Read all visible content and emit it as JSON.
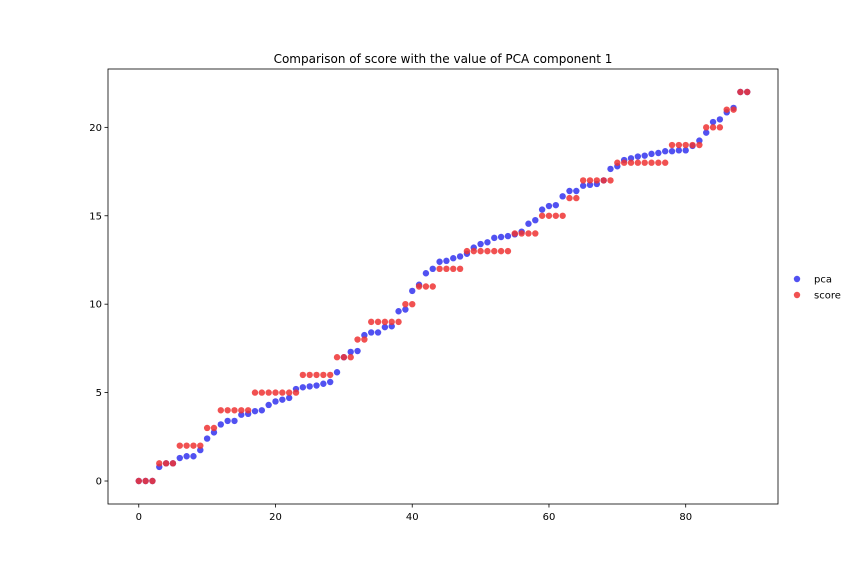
{
  "chart_data": {
    "type": "scatter",
    "title": "Comparison of score with the value of PCA component 1",
    "xlabel": "",
    "ylabel": "",
    "xlim": [
      -4.5,
      93.5
    ],
    "ylim": [
      -1.3,
      23.3
    ],
    "xticks": [
      0,
      20,
      40,
      60,
      80
    ],
    "yticks": [
      0,
      5,
      10,
      15,
      20
    ],
    "grid": false,
    "legend_position": "right",
    "series": [
      {
        "name": "pca",
        "color": "#3333ee",
        "x": [
          0,
          1,
          2,
          3,
          4,
          5,
          6,
          7,
          8,
          9,
          10,
          11,
          12,
          13,
          14,
          15,
          16,
          17,
          18,
          19,
          20,
          21,
          22,
          23,
          24,
          25,
          26,
          27,
          28,
          29,
          30,
          31,
          32,
          33,
          34,
          35,
          36,
          37,
          38,
          39,
          40,
          41,
          42,
          43,
          44,
          45,
          46,
          47,
          48,
          49,
          50,
          51,
          52,
          53,
          54,
          55,
          56,
          57,
          58,
          59,
          60,
          61,
          62,
          63,
          64,
          65,
          66,
          67,
          68,
          69,
          70,
          71,
          72,
          73,
          74,
          75,
          76,
          77,
          78,
          79,
          80,
          81,
          82,
          83,
          84,
          85,
          86,
          87,
          88,
          89
        ],
        "y": [
          0,
          0,
          0,
          0.8,
          1.0,
          1.0,
          1.3,
          1.4,
          1.4,
          1.75,
          2.4,
          2.75,
          3.2,
          3.4,
          3.4,
          3.75,
          3.8,
          3.95,
          4.0,
          4.3,
          4.5,
          4.6,
          4.7,
          5.2,
          5.3,
          5.35,
          5.4,
          5.5,
          5.6,
          6.15,
          7.0,
          7.3,
          7.35,
          8.25,
          8.4,
          8.4,
          8.7,
          8.75,
          9.6,
          9.7,
          10.75,
          11.1,
          11.75,
          12.0,
          12.4,
          12.45,
          12.6,
          12.7,
          12.85,
          13.2,
          13.4,
          13.5,
          13.75,
          13.8,
          13.85,
          13.95,
          14.1,
          14.55,
          14.75,
          15.35,
          15.55,
          15.6,
          16.1,
          16.4,
          16.4,
          16.7,
          16.75,
          16.8,
          17.0,
          17.65,
          17.8,
          18.15,
          18.25,
          18.35,
          18.4,
          18.5,
          18.55,
          18.65,
          18.65,
          18.7,
          18.7,
          18.95,
          19.25,
          19.7,
          20.3,
          20.45,
          20.85,
          21.1,
          22.0,
          22.0
        ]
      },
      {
        "name": "score",
        "color": "#ee3333",
        "x": [
          0,
          1,
          2,
          3,
          4,
          5,
          6,
          7,
          8,
          9,
          10,
          11,
          12,
          13,
          14,
          15,
          16,
          17,
          18,
          19,
          20,
          21,
          22,
          23,
          24,
          25,
          26,
          27,
          28,
          29,
          30,
          31,
          32,
          33,
          34,
          35,
          36,
          37,
          38,
          39,
          40,
          41,
          42,
          43,
          44,
          45,
          46,
          47,
          48,
          49,
          50,
          51,
          52,
          53,
          54,
          55,
          56,
          57,
          58,
          59,
          60,
          61,
          62,
          63,
          64,
          65,
          66,
          67,
          68,
          69,
          70,
          71,
          72,
          73,
          74,
          75,
          76,
          77,
          78,
          79,
          80,
          81,
          82,
          83,
          84,
          85,
          86,
          87,
          88,
          89
        ],
        "y": [
          0,
          0,
          0,
          1,
          1,
          1,
          2,
          2,
          2,
          2,
          3,
          3,
          4,
          4,
          4,
          4,
          4,
          5,
          5,
          5,
          5,
          5,
          5,
          5,
          6,
          6,
          6,
          6,
          6,
          7,
          7,
          7,
          8,
          8,
          9,
          9,
          9,
          9,
          9,
          10,
          10,
          11,
          11,
          11,
          12,
          12,
          12,
          12,
          13,
          13,
          13,
          13,
          13,
          13,
          13,
          14,
          14,
          14,
          14,
          15,
          15,
          15,
          15,
          16,
          16,
          17,
          17,
          17,
          17,
          17,
          18,
          18,
          18,
          18,
          18,
          18,
          18,
          18,
          19,
          19,
          19,
          19,
          19,
          20,
          20,
          20,
          21,
          21,
          22,
          22
        ]
      }
    ]
  }
}
